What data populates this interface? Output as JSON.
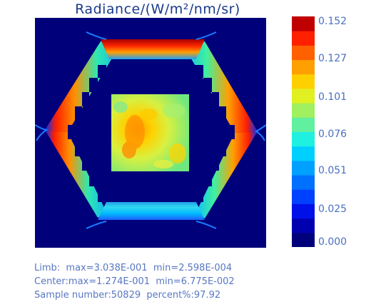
{
  "chart_data": {
    "type": "heatmap",
    "title": "Radiance/(W/m²/nm/sr)",
    "colorbar": {
      "range": [
        0.0,
        0.152
      ],
      "tick_labels": [
        "0.152",
        "0.127",
        "0.101",
        "0.076",
        "0.051",
        "0.025",
        "0.000"
      ],
      "tick_values": [
        0.152,
        0.127,
        0.101,
        0.076,
        0.051,
        0.025,
        0.0
      ],
      "levels": 16
    }
  },
  "colors": {
    "background_field": "#00007a",
    "title": "#1a3a8a",
    "text": "#5877c2"
  },
  "stats": {
    "line1": "Limb:  max=3.038E-001  min=2.598E-004",
    "line2": "Center:max=1.274E-001  min=6.775E-002",
    "line3": "Sample number:50829  percent%:97.92"
  }
}
